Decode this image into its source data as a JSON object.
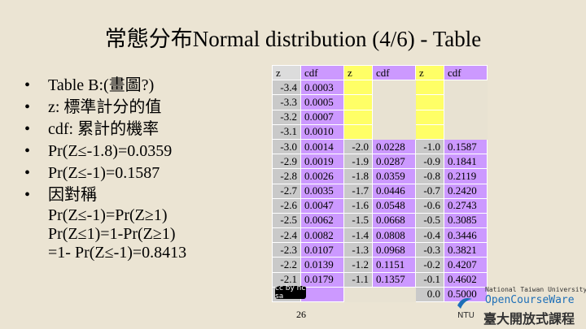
{
  "title": "常態分布Normal distribution (4/6) - Table",
  "bullets": [
    "Table B:(畫圖?)",
    "z: 標準計分的值",
    "cdf: 累計的機率",
    "Pr(Z≤-1.8)=0.0359",
    "Pr(Z≤-1)=0.1587"
  ],
  "symmetry": {
    "label": "因對稱",
    "lines": [
      "Pr(Z≤-1)=Pr(Z≥1)",
      "Pr(Z≤1)=1-Pr(Z≥1)",
      "=1- Pr(Z≤-1)=0.8413"
    ]
  },
  "table": {
    "headers": [
      "z",
      "cdf",
      "z",
      "cdf",
      "z",
      "cdf"
    ],
    "rows": [
      [
        "-3.4",
        "0.0003",
        "",
        "",
        "",
        ""
      ],
      [
        "-3.3",
        "0.0005",
        "",
        "",
        "",
        ""
      ],
      [
        "-3.2",
        "0.0007",
        "",
        "",
        "",
        ""
      ],
      [
        "-3.1",
        "0.0010",
        "",
        "",
        "",
        ""
      ],
      [
        "-3.0",
        "0.0014",
        "-2.0",
        "0.0228",
        "-1.0",
        "0.1587"
      ],
      [
        "-2.9",
        "0.0019",
        "-1.9",
        "0.0287",
        "-0.9",
        "0.1841"
      ],
      [
        "-2.8",
        "0.0026",
        "-1.8",
        "0.0359",
        "-0.8",
        "0.2119"
      ],
      [
        "-2.7",
        "0.0035",
        "-1.7",
        "0.0446",
        "-0.7",
        "0.2420"
      ],
      [
        "-2.6",
        "0.0047",
        "-1.6",
        "0.0548",
        "-0.6",
        "0.2743"
      ],
      [
        "-2.5",
        "0.0062",
        "-1.5",
        "0.0668",
        "-0.5",
        "0.3085"
      ],
      [
        "-2.4",
        "0.0082",
        "-1.4",
        "0.0808",
        "-0.4",
        "0.3446"
      ],
      [
        "-2.3",
        "0.0107",
        "-1.3",
        "0.0968",
        "-0.3",
        "0.3821"
      ],
      [
        "-2.2",
        "0.0139",
        "-1.2",
        "0.1151",
        "-0.2",
        "0.4207"
      ],
      [
        "-2.1",
        "0.0179",
        "-1.1",
        "0.1357",
        "-0.1",
        "0.4602"
      ],
      [
        "",
        "",
        "",
        "",
        "0.0",
        "0.5000"
      ]
    ]
  },
  "footer": {
    "license": "cc by nc sa",
    "page_number": "26",
    "logo_university": "National Taiwan University",
    "logo_ocw": "OpenCourseWare",
    "logo_chinese": "臺大開放式課程",
    "logo_mark": "NTU"
  },
  "colors": {
    "cdf_column": "#cc99ff",
    "z_column": "#c9c9c9",
    "header_highlight": "#ffff66",
    "background": "#ebe4d3"
  }
}
